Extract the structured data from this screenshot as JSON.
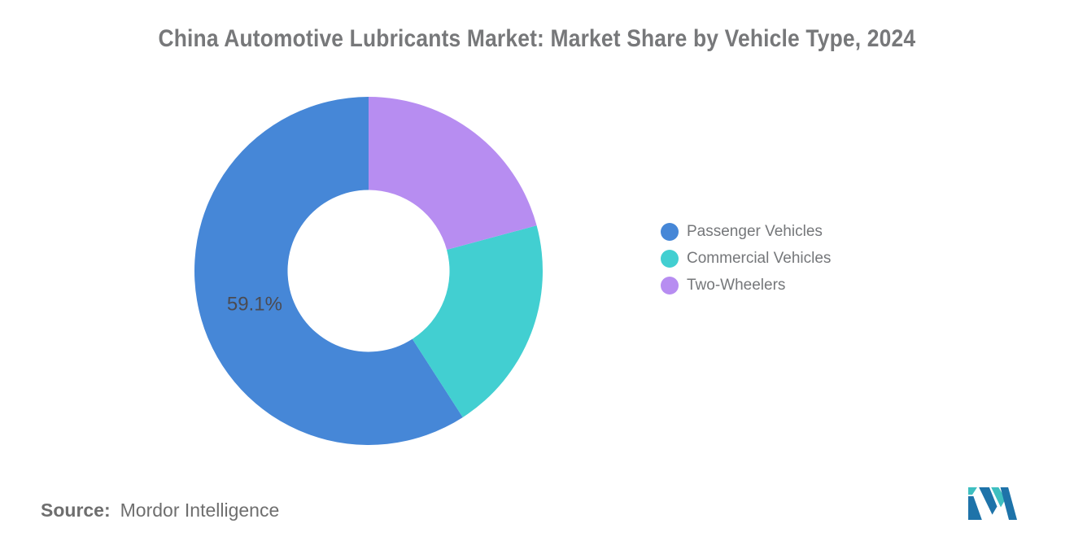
{
  "header": {
    "title": "China Automotive Lubricants Market: Market Share by Vehicle Type, 2024"
  },
  "chart_data": {
    "type": "pie",
    "subtype": "donut",
    "title": "China Automotive Lubricants Market: Market Share by Vehicle Type, 2024",
    "unit": "%",
    "slices": [
      {
        "label": "Passenger Vehicles",
        "value": 59.1,
        "color": "#4687D7",
        "data_label": "59.1%"
      },
      {
        "label": "Commercial Vehicles",
        "value": 20.1,
        "color": "#42CFD1",
        "data_label": ""
      },
      {
        "label": "Two-Wheelers",
        "value": 20.8,
        "color": "#B78DF1",
        "data_label": ""
      }
    ],
    "start_angle_deg": 0,
    "direction": "counter-clockwise-from-top",
    "inner_radius_ratio": 0.465,
    "legend_position": "right",
    "data_label_color": "#4B4B52"
  },
  "footer": {
    "source_label": "Source:",
    "source_value": "Mordor Intelligence"
  },
  "logo_colors": {
    "blue": "#1E73A9",
    "teal": "#3EBFC0"
  }
}
